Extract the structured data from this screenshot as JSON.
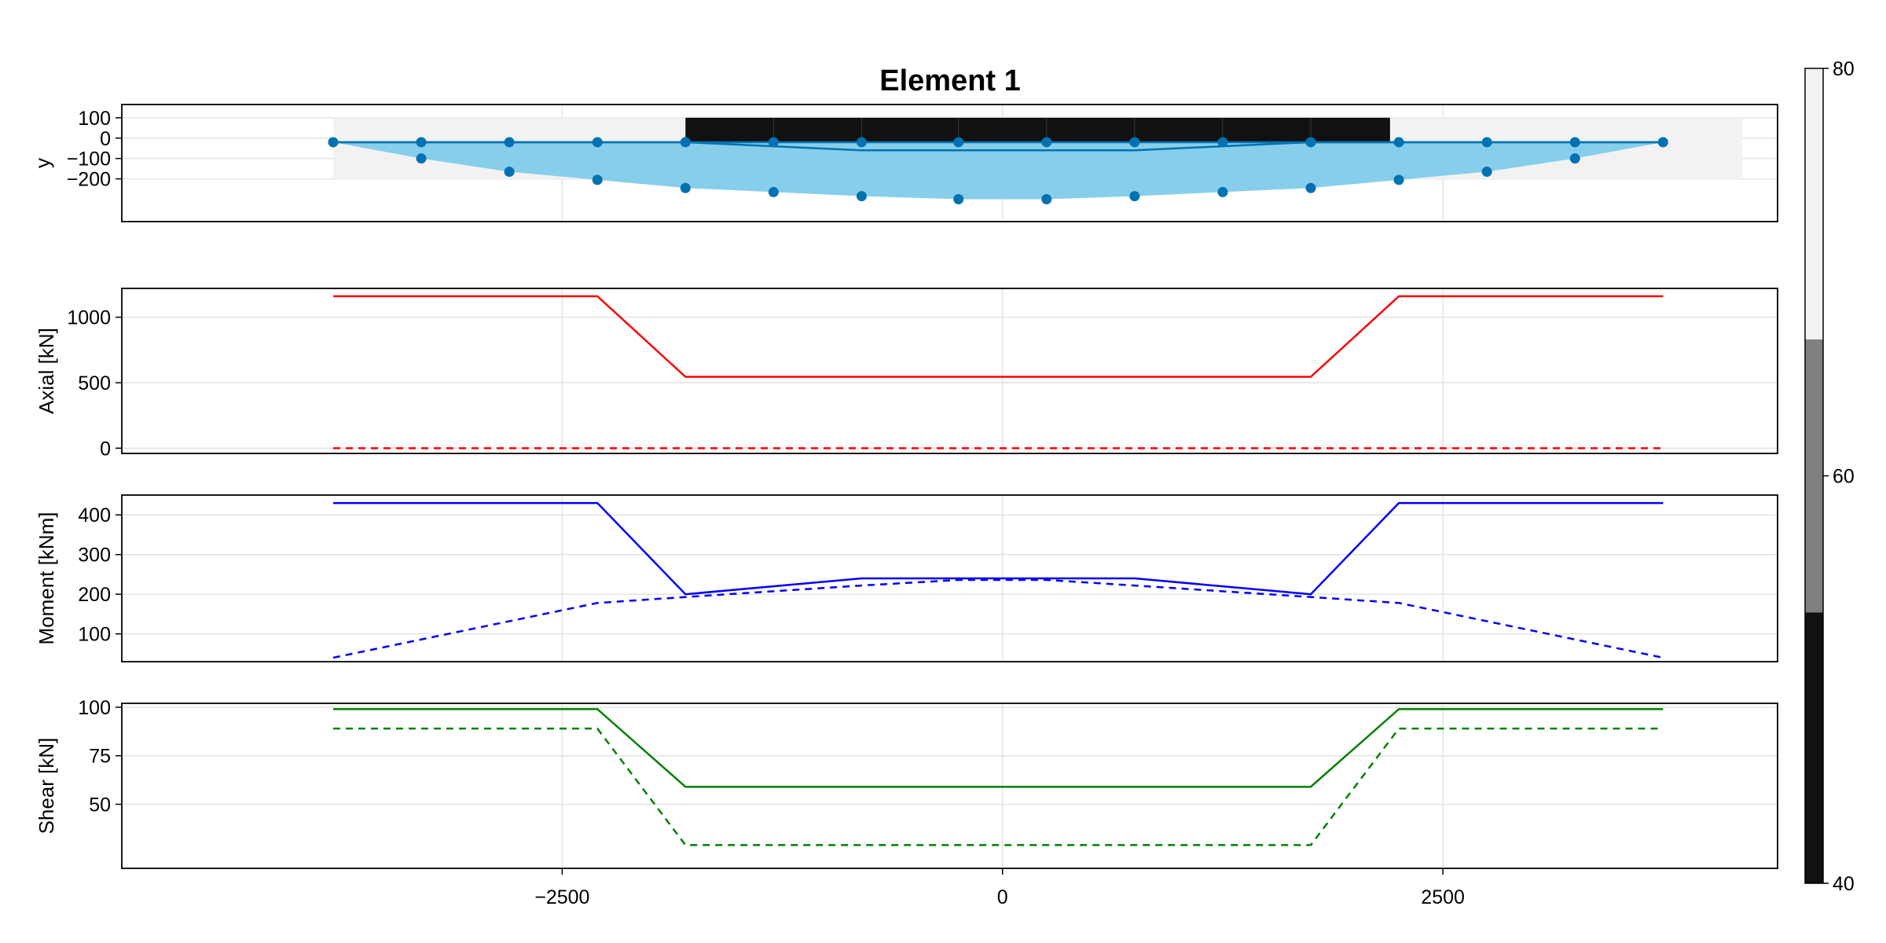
{
  "title": "Element 1",
  "colors": {
    "section": "#87CEEB",
    "node": "#0072B2",
    "section_line": "#0072B2",
    "axial": "#FF0000",
    "moment": "#0000FF",
    "shear": "#008000",
    "envelope_bg": "#F2F2F2",
    "slab": "#111111"
  },
  "chart_data": [
    {
      "type": "scatter",
      "name": "section",
      "ylabel": "y",
      "xlim": [
        -5000,
        4400
      ],
      "ylim": [
        -410,
        165
      ],
      "yticks": [
        100,
        0,
        -100,
        -200
      ],
      "ytick_labels": [
        "100",
        "0",
        "−100",
        "−200"
      ],
      "grid": true,
      "nodes_x": [
        -3800,
        -3300,
        -2800,
        -2300,
        -1800,
        -1300,
        -800,
        -250,
        250,
        750,
        1250,
        1750,
        2250,
        2750,
        3250,
        3750
      ],
      "top_y": [
        -20,
        -20,
        -20,
        -20,
        -20,
        -20,
        -20,
        -20,
        -20,
        -20,
        -20,
        -20,
        -20,
        -20,
        -20,
        -20
      ],
      "bottom_y": [
        -20,
        -100,
        -165,
        -205,
        -245,
        -265,
        -285,
        -300,
        -300,
        -285,
        -265,
        -245,
        -205,
        -165,
        -100,
        -20
      ],
      "neutral_axis_x": [
        -3800,
        -1800,
        -800,
        750,
        1750,
        3750
      ],
      "neutral_axis_y": [
        -20,
        -20,
        -60,
        -60,
        -20,
        -20
      ],
      "slab_x": [
        -1800,
        2200
      ],
      "slab_y": [
        -20,
        100
      ],
      "slab_segments_x": [
        -1800,
        -1300,
        -800,
        -250,
        250,
        750,
        1250,
        1750,
        2200
      ],
      "envelope_x": [
        -3800,
        4200
      ],
      "envelope_y": [
        -200,
        100
      ]
    },
    {
      "type": "line",
      "ylabel": "Axial [kN]",
      "xlim": [
        -5000,
        4400
      ],
      "ylim": [
        -40,
        1220
      ],
      "yticks": [
        0,
        500,
        1000
      ],
      "ytick_labels": [
        "0",
        "500",
        "1000"
      ],
      "grid": true,
      "series": [
        {
          "style": "solid",
          "x": [
            -3800,
            -2300,
            -1800,
            1750,
            2250,
            3750
          ],
          "y": [
            1160,
            1160,
            545,
            545,
            1160,
            1160
          ]
        },
        {
          "style": "dashed",
          "x": [
            -3800,
            3750
          ],
          "y": [
            0,
            0
          ]
        }
      ]
    },
    {
      "type": "line",
      "ylabel": "Moment [kNm]",
      "xlim": [
        -5000,
        4400
      ],
      "ylim": [
        30,
        450
      ],
      "yticks": [
        100,
        200,
        300,
        400
      ],
      "ytick_labels": [
        "100",
        "200",
        "300",
        "400"
      ],
      "grid": true,
      "series": [
        {
          "style": "solid",
          "x": [
            -3800,
            -2300,
            -1800,
            -800,
            750,
            1750,
            2250,
            3750
          ],
          "y": [
            430,
            430,
            200,
            240,
            240,
            200,
            430,
            430
          ]
        },
        {
          "style": "dashed",
          "x": [
            -3800,
            -2300,
            -1800,
            -800,
            -250,
            250,
            750,
            1750,
            2250,
            3750
          ],
          "y": [
            40,
            178,
            193,
            222,
            236,
            236,
            222,
            193,
            178,
            40
          ]
        }
      ]
    },
    {
      "type": "line",
      "ylabel": "Shear [kN]",
      "xlim": [
        -5000,
        4400
      ],
      "ylim": [
        17,
        102
      ],
      "yticks": [
        50,
        75,
        100
      ],
      "ytick_labels": [
        "50",
        "75",
        "100"
      ],
      "xticks": [
        -2500,
        0,
        2500
      ],
      "xtick_labels": [
        "−2500",
        "0",
        "2500"
      ],
      "grid": true,
      "series": [
        {
          "style": "solid",
          "x": [
            -3800,
            -2300,
            -1800,
            1750,
            2250,
            3750
          ],
          "y": [
            99,
            99,
            59,
            59,
            99,
            99
          ]
        },
        {
          "style": "dashed",
          "x": [
            -3800,
            -2300,
            -1800,
            1750,
            2250,
            3750
          ],
          "y": [
            89,
            89,
            29,
            29,
            89,
            89
          ]
        }
      ]
    },
    {
      "type": "heatmap",
      "name": "colorbar",
      "range": [
        40,
        80
      ],
      "ticks": [
        40,
        60,
        80
      ],
      "tick_labels": [
        "40",
        "60",
        "80"
      ],
      "levels": [
        {
          "from": 40,
          "to": 53.3,
          "color": "#111111"
        },
        {
          "from": 53.3,
          "to": 66.7,
          "color": "#808080"
        },
        {
          "from": 66.7,
          "to": 80,
          "color": "#F2F2F2"
        }
      ]
    }
  ]
}
